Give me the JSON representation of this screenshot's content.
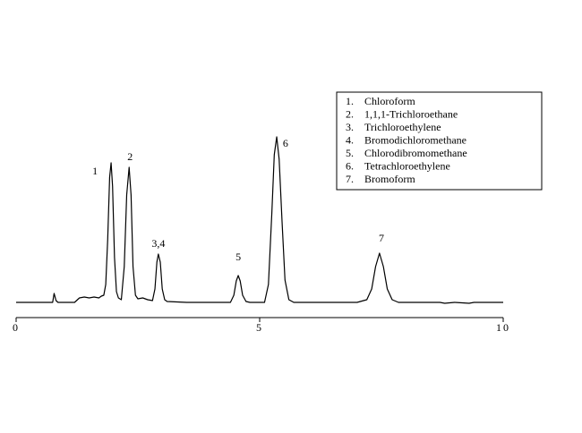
{
  "chart_data": {
    "type": "line",
    "x": [
      0,
      0.75,
      0.78,
      0.82,
      0.86,
      1.2,
      1.3,
      1.4,
      1.5,
      1.6,
      1.7,
      1.75,
      1.8,
      1.84,
      1.88,
      1.92,
      1.95,
      1.98,
      2.02,
      2.06,
      2.1,
      2.16,
      2.22,
      2.27,
      2.32,
      2.36,
      2.4,
      2.45,
      2.5,
      2.6,
      2.7,
      2.8,
      2.85,
      2.89,
      2.92,
      2.96,
      3.0,
      3.05,
      3.1,
      3.5,
      4.0,
      4.4,
      4.47,
      4.52,
      4.56,
      4.6,
      4.65,
      4.72,
      4.8,
      5.1,
      5.18,
      5.25,
      5.3,
      5.35,
      5.4,
      5.46,
      5.52,
      5.6,
      5.7,
      7.0,
      7.2,
      7.3,
      7.38,
      7.46,
      7.54,
      7.62,
      7.72,
      7.85,
      8.7,
      8.8,
      9.0,
      9.3,
      9.4,
      10
    ],
    "values": [
      0,
      0,
      10,
      2,
      0,
      0,
      5,
      6,
      5,
      6,
      5,
      7,
      8,
      20,
      70,
      140,
      156,
      130,
      50,
      12,
      5,
      3,
      40,
      120,
      151,
      120,
      40,
      8,
      4,
      5,
      3,
      2,
      15,
      45,
      54,
      45,
      15,
      3,
      1,
      0,
      0,
      0,
      8,
      24,
      30,
      24,
      8,
      1,
      0,
      0,
      20,
      100,
      165,
      185,
      160,
      90,
      25,
      3,
      0,
      0,
      3,
      15,
      40,
      55,
      40,
      15,
      3,
      0,
      0,
      -1,
      0,
      -1,
      0,
      0
    ],
    "color": "#000000",
    "xlim": [
      0,
      10
    ],
    "xticks": [
      0,
      5,
      10
    ],
    "ylim": [
      0,
      200
    ],
    "annotations": [
      {
        "text": "1",
        "x": 1.62,
        "y": 146
      },
      {
        "text": "2",
        "x": 2.34,
        "y": 162
      },
      {
        "text": "3,4",
        "x": 2.92,
        "y": 65
      },
      {
        "text": "5",
        "x": 4.56,
        "y": 50
      },
      {
        "text": "6",
        "x": 5.53,
        "y": 177
      },
      {
        "text": "7",
        "x": 7.5,
        "y": 71
      }
    ],
    "key": [
      {
        "number": "1.",
        "name": "Chloroform"
      },
      {
        "number": "2.",
        "name": "1,1,1-Trichloroethane"
      },
      {
        "number": "3.",
        "name": "Trichloroethylene"
      },
      {
        "number": "4.",
        "name": "Bromodichloromethane"
      },
      {
        "number": "5.",
        "name": "Chlorodibromomethane"
      },
      {
        "number": "6.",
        "name": "Tetrachloroethylene"
      },
      {
        "number": "7.",
        "name": "Bromoform"
      }
    ]
  }
}
